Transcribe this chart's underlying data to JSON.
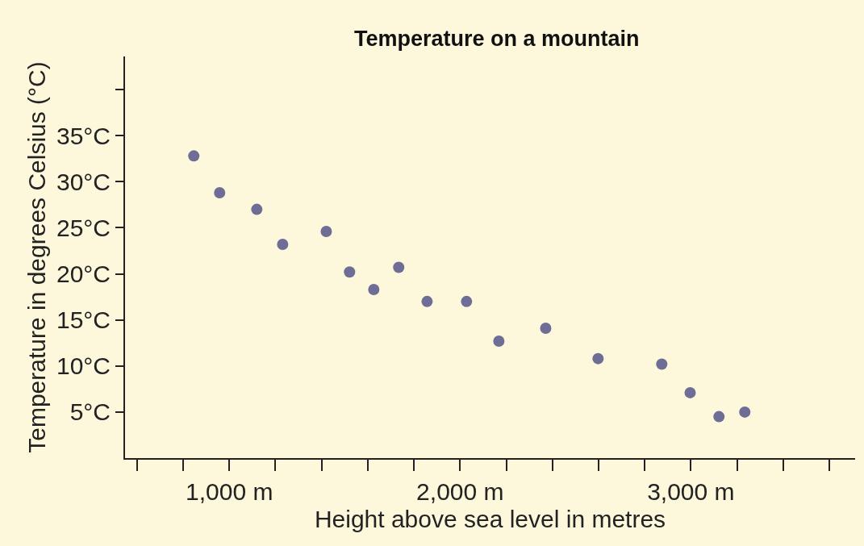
{
  "chart_data": {
    "type": "scatter",
    "title": "Temperature on a mountain",
    "xlabel": "Height above sea level in metres",
    "ylabel": "Temperature in degrees Celsius (°C)",
    "x": [
      846,
      958,
      1119,
      1231,
      1420,
      1521,
      1626,
      1734,
      1857,
      2028,
      2168,
      2371,
      2598,
      2874,
      2997,
      3122,
      3234
    ],
    "values": [
      32.8,
      28.8,
      27.0,
      23.2,
      24.6,
      20.2,
      18.3,
      20.7,
      17.0,
      17.0,
      12.7,
      14.1,
      10.8,
      10.2,
      7.1,
      4.5,
      5.0
    ],
    "color": "#6e6d96",
    "marker": "circle",
    "grid": false,
    "legend": false,
    "xlim": [
      548,
      3712
    ],
    "xticks": [
      {
        "value": 600,
        "label": null
      },
      {
        "value": 800,
        "label": null
      },
      {
        "value": 1000,
        "label": "1,000 m"
      },
      {
        "value": 1200,
        "label": null
      },
      {
        "value": 1400,
        "label": null
      },
      {
        "value": 1600,
        "label": null
      },
      {
        "value": 1800,
        "label": null
      },
      {
        "value": 2000,
        "label": "2,000 m"
      },
      {
        "value": 2200,
        "label": null
      },
      {
        "value": 2400,
        "label": null
      },
      {
        "value": 2600,
        "label": null
      },
      {
        "value": 2800,
        "label": null
      },
      {
        "value": 3000,
        "label": "3,000 m"
      },
      {
        "value": 3200,
        "label": null
      },
      {
        "value": 3400,
        "label": null
      },
      {
        "value": 3600,
        "label": null
      }
    ],
    "ylim": [
      0,
      43.6
    ],
    "yticks": [
      {
        "value": 5,
        "label": "5°C"
      },
      {
        "value": 10,
        "label": "10°C"
      },
      {
        "value": 15,
        "label": "15°C"
      },
      {
        "value": 20,
        "label": "20°C"
      },
      {
        "value": 25,
        "label": "25°C"
      },
      {
        "value": 30,
        "label": "30°C"
      },
      {
        "value": 35,
        "label": "35°C"
      },
      {
        "value": 40,
        "label": null
      }
    ]
  }
}
